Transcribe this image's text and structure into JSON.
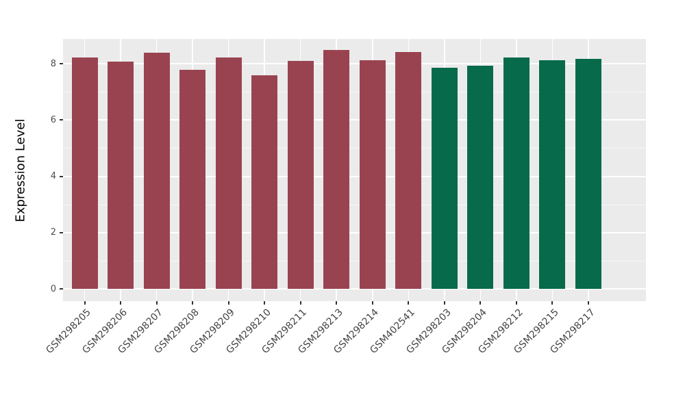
{
  "chart_data": {
    "type": "bar",
    "title": "",
    "ylabel": "Expression Level",
    "xlabel": "",
    "categories": [
      "GSM298205",
      "GSM298206",
      "GSM298207",
      "GSM298208",
      "GSM298209",
      "GSM298210",
      "GSM298211",
      "GSM298213",
      "GSM298214",
      "GSM402541",
      "GSM298203",
      "GSM298204",
      "GSM298212",
      "GSM298215",
      "GSM298217"
    ],
    "values": [
      8.22,
      8.08,
      8.4,
      7.78,
      8.22,
      7.59,
      8.1,
      8.48,
      8.13,
      8.42,
      7.86,
      7.93,
      8.22,
      8.12,
      8.16
    ],
    "bar_color_index": [
      0,
      0,
      0,
      0,
      0,
      0,
      0,
      0,
      0,
      0,
      1,
      1,
      1,
      1,
      1
    ],
    "palette": [
      "#9A4350",
      "#076A4B"
    ],
    "ylim": [
      0,
      8.88
    ],
    "yticks": [
      0,
      2,
      4,
      6,
      8
    ],
    "minor_yticks": [
      1,
      3,
      5,
      7
    ],
    "grid": "on",
    "legend_position": "none",
    "panel_background": "#EBEBEB",
    "gridline_color": "#FFFFFF",
    "axis_text_color": "#4D4D4D",
    "tick_mark_color": "#333333"
  }
}
